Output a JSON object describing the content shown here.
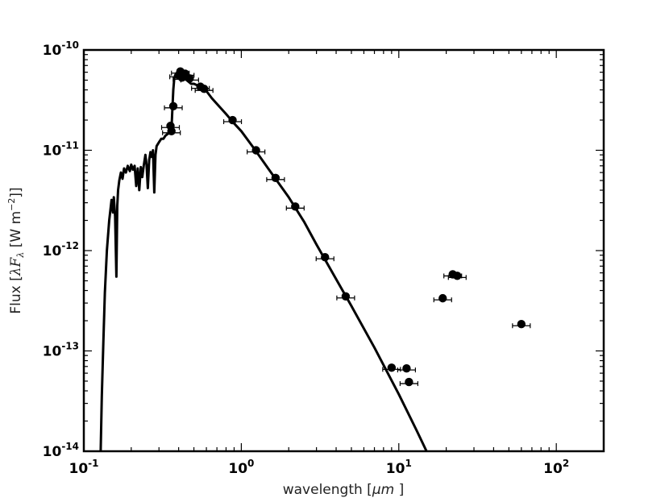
{
  "chart_data": {
    "type": "scatter",
    "xscale": "log",
    "yscale": "log",
    "xlim": [
      0.1,
      200
    ],
    "ylim": [
      1e-14,
      1e-10
    ],
    "grid": false,
    "xlabel": {
      "text": "wavelength [",
      "math": "μm",
      "suffix": " ]"
    },
    "ylabel": {
      "text": "Flux [",
      "lambda": "λ",
      "F": "F",
      "sub": "λ",
      "unit": " [W  m",
      "sup": "−2",
      "close": "]]"
    },
    "x_ticks": [
      {
        "value": 0.1,
        "base": "10",
        "exp": "-1"
      },
      {
        "value": 1,
        "base": "10",
        "exp": "0"
      },
      {
        "value": 10,
        "base": "10",
        "exp": "1"
      },
      {
        "value": 100,
        "base": "10",
        "exp": "2"
      }
    ],
    "y_ticks": [
      {
        "value": 1e-14,
        "base": "10",
        "exp": "-14"
      },
      {
        "value": 1e-13,
        "base": "10",
        "exp": "-13"
      },
      {
        "value": 1e-12,
        "base": "10",
        "exp": "-12"
      },
      {
        "value": 1e-11,
        "base": "10",
        "exp": "-11"
      },
      {
        "value": 1e-10,
        "base": "10",
        "exp": "-10"
      }
    ],
    "series": [
      {
        "kind": "model-line",
        "color": "#000000",
        "x": [
          0.128,
          0.13,
          0.133,
          0.136,
          0.14,
          0.145,
          0.15,
          0.153,
          0.155,
          0.158,
          0.161,
          0.163,
          0.165,
          0.168,
          0.172,
          0.176,
          0.18,
          0.185,
          0.19,
          0.196,
          0.2,
          0.205,
          0.21,
          0.215,
          0.22,
          0.225,
          0.23,
          0.235,
          0.24,
          0.246,
          0.25,
          0.255,
          0.26,
          0.265,
          0.27,
          0.275,
          0.28,
          0.285,
          0.29,
          0.3,
          0.31,
          0.32,
          0.33,
          0.34,
          0.35,
          0.36,
          0.365,
          0.37,
          0.375,
          0.38,
          0.39,
          0.4,
          0.42,
          0.45,
          0.48,
          0.5,
          0.55,
          0.6,
          0.65,
          0.7,
          0.8,
          0.9,
          1.0,
          1.2,
          1.5,
          2.0,
          2.5,
          3.0,
          4.0,
          5.0,
          7.0,
          10.0,
          13.0,
          15.0
        ],
        "y": [
          1e-14,
          3.5e-14,
          1.2e-13,
          3.8e-13,
          1e-12,
          2e-12,
          3.2e-12,
          2.4e-12,
          3.4e-12,
          2.2e-12,
          5.5e-13,
          2.8e-12,
          4e-12,
          5e-12,
          6e-12,
          5.2e-12,
          6.6e-12,
          6e-12,
          7e-12,
          6.2e-12,
          7.2e-12,
          6.4e-12,
          7e-12,
          4.4e-12,
          6.6e-12,
          4e-12,
          6.8e-12,
          5.4e-12,
          7e-12,
          9e-12,
          7.2e-12,
          4.2e-12,
          8e-12,
          9.6e-12,
          8.6e-12,
          1e-11,
          3.8e-12,
          9e-12,
          1.1e-11,
          1.2e-11,
          1.3e-11,
          1.3e-11,
          1.4e-11,
          1.45e-11,
          1.5e-11,
          1.6e-11,
          2.6e-11,
          4e-11,
          5.2e-11,
          5.6e-11,
          5.9e-11,
          5.8e-11,
          5.5e-11,
          5e-11,
          4.6e-11,
          4.6e-11,
          4.3e-11,
          3.9e-11,
          3.3e-11,
          2.9e-11,
          2.3e-11,
          1.85e-11,
          1.55e-11,
          1.05e-11,
          6.4e-12,
          3.4e-12,
          1.95e-12,
          1.15e-12,
          5.2e-13,
          2.8e-13,
          1.08e-13,
          3.7e-14,
          1.6e-14,
          1e-14
        ]
      },
      {
        "kind": "observed-points",
        "color": "#000000",
        "points": [
          {
            "x": 0.355,
            "y": 1.75e-11
          },
          {
            "x": 0.36,
            "y": 1.55e-11
          },
          {
            "x": 0.37,
            "y": 2.75e-11
          },
          {
            "x": 0.4,
            "y": 5.6e-11
          },
          {
            "x": 0.41,
            "y": 6.1e-11
          },
          {
            "x": 0.42,
            "y": 5.3e-11
          },
          {
            "x": 0.44,
            "y": 5.8e-11
          },
          {
            "x": 0.47,
            "y": 5.2e-11
          },
          {
            "x": 0.55,
            "y": 4.3e-11
          },
          {
            "x": 0.58,
            "y": 4.1e-11
          },
          {
            "x": 0.88,
            "y": 2e-11
          },
          {
            "x": 1.24,
            "y": 1e-11
          },
          {
            "x": 1.65,
            "y": 5.3e-12
          },
          {
            "x": 2.2,
            "y": 2.75e-12
          },
          {
            "x": 3.4,
            "y": 8.6e-13
          },
          {
            "x": 4.6,
            "y": 3.5e-13
          },
          {
            "x": 9.0,
            "y": 6.8e-14
          },
          {
            "x": 11.2,
            "y": 6.7e-14
          },
          {
            "x": 11.6,
            "y": 4.9e-14
          },
          {
            "x": 19.0,
            "y": 3.35e-13
          },
          {
            "x": 22.0,
            "y": 5.8e-13
          },
          {
            "x": 23.5,
            "y": 5.6e-13
          },
          {
            "x": 60.0,
            "y": 1.85e-13
          }
        ]
      }
    ]
  }
}
